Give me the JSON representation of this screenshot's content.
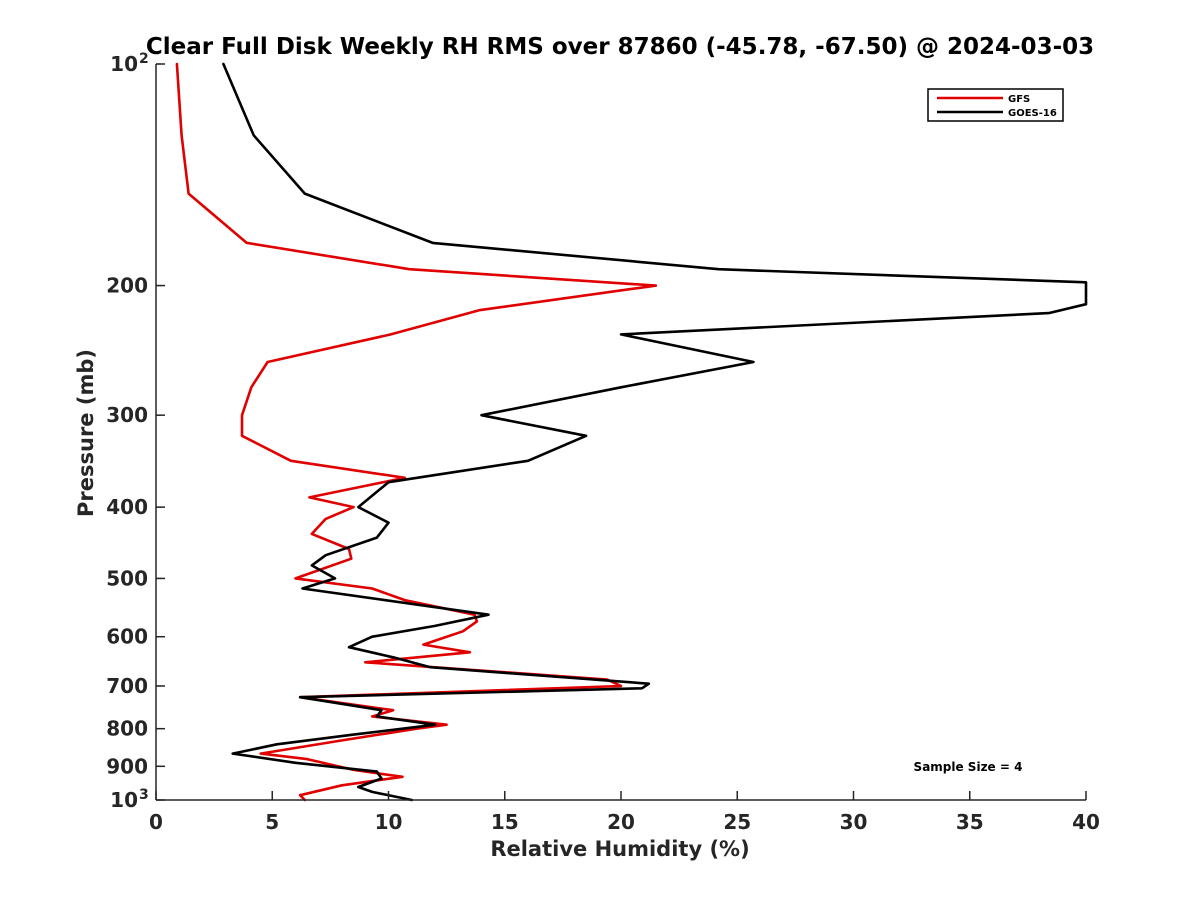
{
  "chart_data": {
    "type": "line",
    "title": "Clear Full Disk Weekly RH RMS over 87860 (-45.78, -67.50) @ 2024-03-03",
    "xlabel": "Relative Humidity (%)",
    "ylabel": "Pressure (mb)",
    "xlim": [
      0,
      40
    ],
    "ylim": [
      100,
      1000
    ],
    "y_scale": "log",
    "y_reversed": true,
    "grid": false,
    "legend_position": "top-right",
    "x_ticks": [
      "0",
      "5",
      "10",
      "15",
      "20",
      "25",
      "30",
      "35",
      "40"
    ],
    "y_ticks": [
      {
        "value": 100,
        "base": "10",
        "exp": "2"
      },
      {
        "value": 200,
        "base": "200",
        "exp": ""
      },
      {
        "value": 300,
        "base": "300",
        "exp": ""
      },
      {
        "value": 400,
        "base": "400",
        "exp": ""
      },
      {
        "value": 500,
        "base": "500",
        "exp": ""
      },
      {
        "value": 600,
        "base": "600",
        "exp": ""
      },
      {
        "value": 700,
        "base": "700",
        "exp": ""
      },
      {
        "value": 800,
        "base": "800",
        "exp": ""
      },
      {
        "value": 900,
        "base": "900",
        "exp": ""
      },
      {
        "value": 1000,
        "base": "10",
        "exp": "3"
      }
    ],
    "series": [
      {
        "name": "GFS",
        "color": "#e00000",
        "points": [
          [
            0.9,
            100
          ],
          [
            1.1,
            125
          ],
          [
            1.4,
            150
          ],
          [
            3.9,
            175
          ],
          [
            10.9,
            190
          ],
          [
            21.5,
            200
          ],
          [
            13.9,
            216
          ],
          [
            10.1,
            233
          ],
          [
            4.8,
            254
          ],
          [
            4.1,
            275
          ],
          [
            3.7,
            300
          ],
          [
            3.7,
            320
          ],
          [
            5.8,
            346
          ],
          [
            10.7,
            365
          ],
          [
            6.6,
            388
          ],
          [
            8.5,
            400
          ],
          [
            7.3,
            415
          ],
          [
            6.7,
            435
          ],
          [
            8.3,
            456
          ],
          [
            8.4,
            470
          ],
          [
            6.0,
            500
          ],
          [
            9.3,
            516
          ],
          [
            10.7,
            535
          ],
          [
            13.7,
            560
          ],
          [
            13.8,
            572
          ],
          [
            13.2,
            590
          ],
          [
            11.5,
            615
          ],
          [
            13.5,
            630
          ],
          [
            9.0,
            650
          ],
          [
            19.4,
            686
          ],
          [
            20.0,
            700
          ],
          [
            6.2,
            725
          ],
          [
            10.2,
            755
          ],
          [
            9.3,
            770
          ],
          [
            12.5,
            790
          ],
          [
            11.2,
            800
          ],
          [
            8.0,
            830
          ],
          [
            4.5,
            865
          ],
          [
            6.5,
            880
          ],
          [
            8.5,
            910
          ],
          [
            10.6,
            930
          ],
          [
            8.0,
            955
          ],
          [
            6.2,
            985
          ],
          [
            6.4,
            1000
          ]
        ]
      },
      {
        "name": "GOES-16",
        "color": "#000000",
        "points": [
          [
            2.9,
            100
          ],
          [
            4.2,
            125
          ],
          [
            6.4,
            150
          ],
          [
            11.9,
            175
          ],
          [
            24.2,
            190
          ],
          [
            40.0,
            198
          ],
          [
            40.0,
            212
          ],
          [
            38.4,
            218
          ],
          [
            20.0,
            233
          ],
          [
            25.7,
            254
          ],
          [
            20.0,
            275
          ],
          [
            14.0,
            300
          ],
          [
            18.5,
            320
          ],
          [
            16.0,
            346
          ],
          [
            10.0,
            370
          ],
          [
            8.7,
            400
          ],
          [
            10.0,
            420
          ],
          [
            9.5,
            440
          ],
          [
            7.3,
            465
          ],
          [
            6.7,
            480
          ],
          [
            7.7,
            500
          ],
          [
            6.3,
            516
          ],
          [
            14.3,
            560
          ],
          [
            12.0,
            580
          ],
          [
            9.3,
            600
          ],
          [
            8.3,
            620
          ],
          [
            10.2,
            640
          ],
          [
            11.8,
            660
          ],
          [
            21.2,
            695
          ],
          [
            20.9,
            705
          ],
          [
            6.2,
            725
          ],
          [
            9.7,
            755
          ],
          [
            9.5,
            770
          ],
          [
            12.0,
            790
          ],
          [
            8.5,
            815
          ],
          [
            5.2,
            840
          ],
          [
            3.3,
            865
          ],
          [
            6.0,
            890
          ],
          [
            9.5,
            915
          ],
          [
            9.7,
            935
          ],
          [
            8.7,
            960
          ],
          [
            9.3,
            975
          ],
          [
            11.0,
            1000
          ]
        ]
      }
    ],
    "annotation": "Sample Size = 4"
  }
}
